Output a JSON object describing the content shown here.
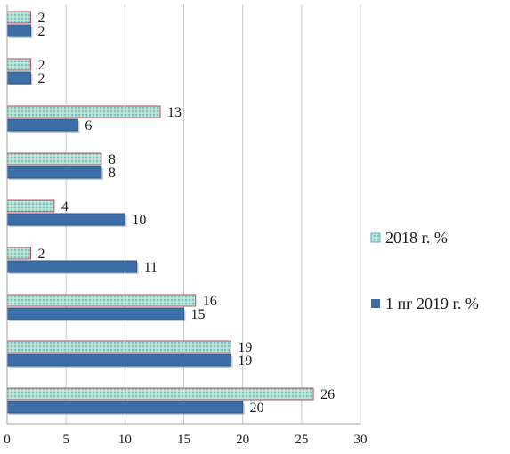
{
  "chart_data": {
    "type": "bar",
    "orientation": "horizontal",
    "categories": [
      "",
      "",
      "",
      "",
      "",
      "",
      "",
      "",
      ""
    ],
    "series": [
      {
        "name": "2018 г. %",
        "values": [
          2,
          2,
          13,
          8,
          4,
          2,
          16,
          19,
          26
        ],
        "color": "#9fd8e0",
        "pattern": "dotted-teal"
      },
      {
        "name": "1 пг 2019 г. %",
        "values": [
          2,
          2,
          6,
          8,
          10,
          11,
          15,
          19,
          20
        ],
        "color": "#3c6ea8"
      }
    ],
    "title": "",
    "xlabel": "",
    "ylabel": "",
    "xlim": [
      0,
      30
    ],
    "xticks": [
      0,
      5,
      10,
      15,
      20,
      25,
      30
    ],
    "grid": "vertical",
    "legend": "right"
  }
}
